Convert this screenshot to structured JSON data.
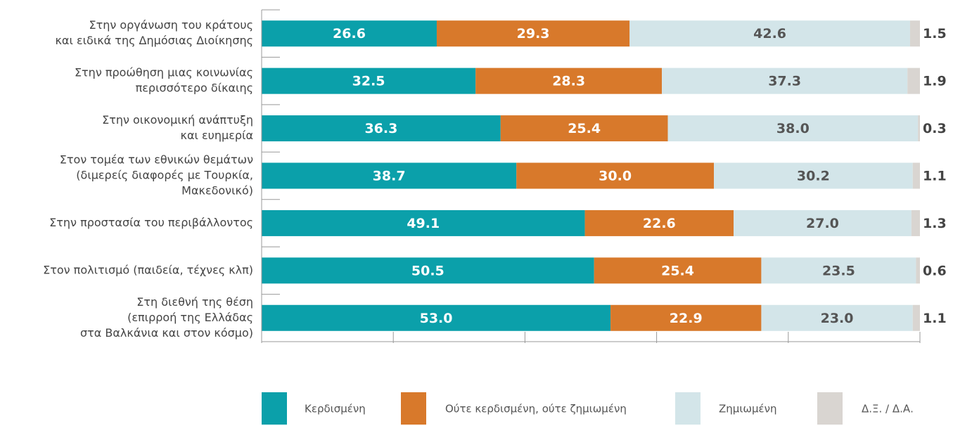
{
  "chart_data": {
    "type": "stacked_bar_horizontal",
    "categories": [
      [
        "Στην οργάνωση του κράτους",
        "και ειδικά της Δημόσιας Διοίκησης"
      ],
      [
        "Στην προώθηση μιας κοινωνίας",
        "περισσότερο δίκαιης"
      ],
      [
        "Στην οικονομική ανάπτυξη",
        "και ευημερία"
      ],
      [
        "Στον τομέα των εθνικών θεμάτων",
        "(διμερείς διαφορές με Τουρκία,",
        "Μακεδονικό)"
      ],
      [
        "Στην προστασία του περιβάλλοντος"
      ],
      [
        "Στον πολιτισμό (παιδεία, τέχνες κλπ)"
      ],
      [
        "Στη διεθνή της θέση",
        "(επιρροή της Ελλάδας",
        "στα Βαλκάνια και στον κόσμο)"
      ]
    ],
    "series": [
      {
        "name": "Κερδισμένη",
        "color": "#0ba0aa",
        "label_color": "#ffffff",
        "values": [
          26.6,
          32.5,
          36.3,
          38.7,
          49.1,
          50.5,
          53.0
        ],
        "value_labels": [
          "26.6",
          "32.5",
          "36.3",
          "38.7",
          "49.1",
          "50.5",
          "53.0"
        ]
      },
      {
        "name": "Ούτε κερδισμένη, ούτε ζημιωμένη",
        "color": "#d8792b",
        "label_color": "#ffffff",
        "values": [
          29.3,
          28.3,
          25.4,
          30.0,
          22.6,
          25.4,
          22.9
        ],
        "value_labels": [
          "29.3",
          "28.3",
          "25.4",
          "30.0",
          "22.6",
          "25.4",
          "22.9"
        ]
      },
      {
        "name": "Ζημιωμένη",
        "color": "#d3e5e9",
        "label_color": "#555555",
        "values": [
          42.6,
          37.3,
          38.0,
          30.2,
          27.0,
          23.5,
          23.0
        ],
        "value_labels": [
          "42.6",
          "37.3",
          "38.0",
          "30.2",
          "27.0",
          "23.5",
          "23.0"
        ]
      },
      {
        "name": "Δ.Ξ. / Δ.Α.",
        "color": "#d9d5d1",
        "label_color": "#444444",
        "labels_outside": true,
        "values": [
          1.5,
          1.9,
          0.3,
          1.1,
          1.3,
          0.6,
          1.1
        ],
        "value_labels": [
          "1.5",
          "1.9",
          "0.3",
          "1.1",
          "1.3",
          "0.6",
          "1.1"
        ]
      }
    ],
    "xlim": [
      0,
      100
    ],
    "xticks": [
      0,
      20,
      40,
      60,
      80,
      100
    ]
  }
}
